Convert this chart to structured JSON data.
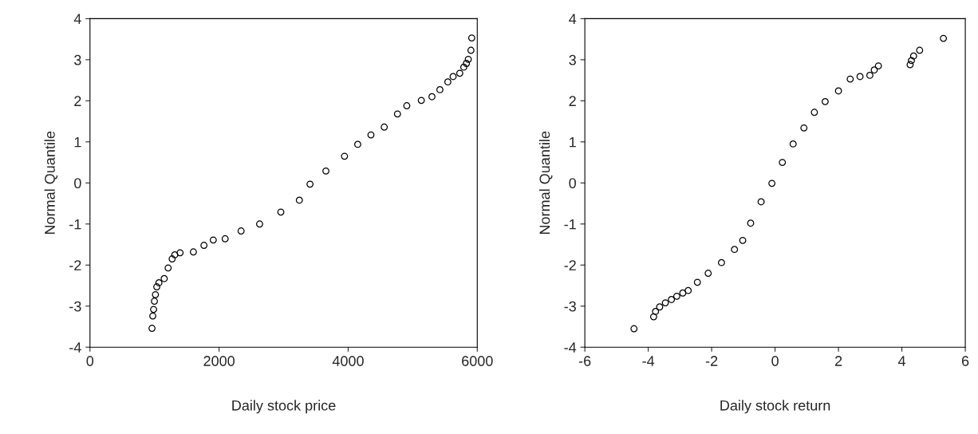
{
  "chart_data": [
    {
      "type": "scatter",
      "xlabel": "Daily stock price",
      "ylabel": "Normal Quantile",
      "marker": "circle",
      "grid": false,
      "xlim": [
        0,
        6000
      ],
      "xticks": [
        0,
        2000,
        4000,
        6000
      ],
      "ylim": [
        -4,
        4
      ],
      "yticks": [
        -4,
        -3,
        -2,
        -1,
        0,
        1,
        2,
        3,
        4
      ],
      "series": [
        {
          "color": "#000000",
          "x": [
            961,
            973,
            986,
            998,
            1014,
            1035,
            1068,
            1150,
            1211,
            1273,
            1314,
            1396,
            1602,
            1766,
            1910,
            2094,
            2341,
            2628,
            2957,
            3244,
            3409,
            3655,
            3943,
            4148,
            4353,
            4559,
            4764,
            4908,
            5133,
            5298,
            5421,
            5544,
            5626,
            5729,
            5791,
            5832,
            5861,
            5902,
            5914
          ],
          "values": [
            -3.54,
            -3.24,
            -3.08,
            -2.88,
            -2.72,
            -2.53,
            -2.43,
            -2.33,
            -2.07,
            -1.85,
            -1.75,
            -1.7,
            -1.68,
            -1.52,
            -1.39,
            -1.36,
            -1.17,
            -1.0,
            -0.71,
            -0.42,
            -0.03,
            0.29,
            0.65,
            0.94,
            1.17,
            1.36,
            1.68,
            1.88,
            2.01,
            2.1,
            2.27,
            2.46,
            2.59,
            2.67,
            2.82,
            2.91,
            3.01,
            3.23,
            3.53
          ]
        }
      ]
    },
    {
      "type": "scatter",
      "xlabel": "Daily stock return",
      "ylabel": "Normal Quantile",
      "marker": "circle",
      "grid": false,
      "xlim": [
        -6,
        6
      ],
      "xticks": [
        -6,
        -4,
        -2,
        0,
        2,
        4,
        6
      ],
      "ylim": [
        -4,
        4
      ],
      "yticks": [
        -4,
        -3,
        -2,
        -1,
        0,
        1,
        2,
        3,
        4
      ],
      "series": [
        {
          "color": "#000000",
          "x": [
            -4.45,
            -3.83,
            -3.77,
            -3.64,
            -3.46,
            -3.27,
            -3.1,
            -2.91,
            -2.74,
            -2.45,
            -2.11,
            -1.69,
            -1.28,
            -1.02,
            -0.77,
            -0.44,
            -0.1,
            0.23,
            0.57,
            0.91,
            1.24,
            1.58,
            2.0,
            2.37,
            2.68,
            2.99,
            3.13,
            3.26,
            4.26,
            4.3,
            4.37,
            4.56,
            5.31
          ],
          "values": [
            -3.55,
            -3.26,
            -3.13,
            -3.02,
            -2.92,
            -2.84,
            -2.76,
            -2.68,
            -2.62,
            -2.42,
            -2.2,
            -1.94,
            -1.62,
            -1.4,
            -0.98,
            -0.46,
            -0.01,
            0.5,
            0.95,
            1.34,
            1.72,
            1.98,
            2.24,
            2.53,
            2.59,
            2.62,
            2.75,
            2.85,
            2.88,
            2.98,
            3.09,
            3.23,
            3.52
          ]
        }
      ]
    }
  ]
}
